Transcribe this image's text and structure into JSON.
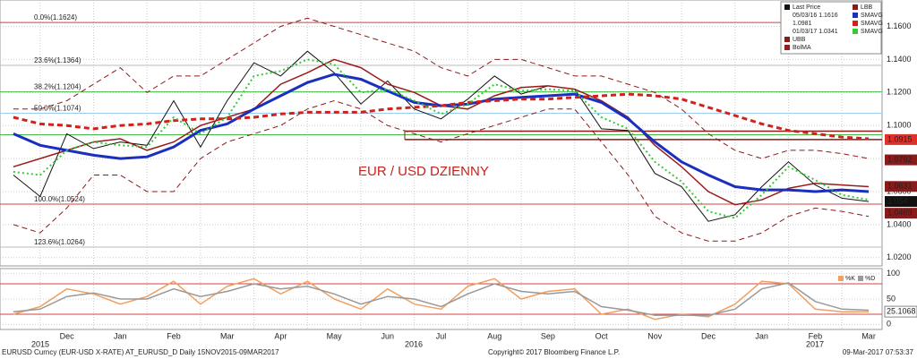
{
  "chart_data": {
    "type": "line",
    "annotation": "EUR / USD DZIENNY",
    "categories": [
      null,
      null,
      "Dec",
      null,
      "Jan",
      null,
      "Feb",
      null,
      "Mar",
      null,
      "Apr",
      null,
      "May",
      null,
      "Jun",
      null,
      "Jul",
      null,
      "Aug",
      null,
      "Sep",
      null,
      "Oct",
      null,
      "Nov",
      null,
      "Dec",
      null,
      "Jan",
      null,
      "Feb",
      null,
      "Mar"
    ],
    "year_labels": [
      "2015",
      "2016",
      "2017"
    ],
    "ylim": [
      1.015,
      1.176
    ],
    "yticks": [
      {
        "value": 1.16,
        "label": "1.1600"
      },
      {
        "value": 1.14,
        "label": "1.1400"
      },
      {
        "value": 1.12,
        "label": "1.1200"
      },
      {
        "value": 1.1,
        "label": "1.1000"
      },
      {
        "value": 1.08,
        "label": "1.0800"
      },
      {
        "value": 1.06,
        "label": "1.0600"
      },
      {
        "value": 1.04,
        "label": "1.0400"
      },
      {
        "value": 1.02,
        "label": "1.0200"
      }
    ],
    "grid": true,
    "series": [
      {
        "name": "Last Price",
        "color": "#111111",
        "style": "solid",
        "width": 1,
        "values": [
          1.07,
          1.057,
          1.095,
          1.086,
          1.09,
          1.088,
          1.115,
          1.087,
          1.115,
          1.138,
          1.13,
          1.145,
          1.132,
          1.113,
          1.127,
          1.11,
          1.104,
          1.116,
          1.13,
          1.119,
          1.124,
          1.122,
          1.098,
          1.097,
          1.071,
          1.063,
          1.042,
          1.046,
          1.063,
          1.078,
          1.064,
          1.056,
          1.054
        ]
      },
      {
        "name": "UBB",
        "color": "#8b1a1a",
        "style": "dashed",
        "width": 1,
        "values": [
          1.11,
          1.11,
          1.115,
          1.125,
          1.135,
          1.12,
          1.13,
          1.13,
          1.14,
          1.15,
          1.16,
          1.165,
          1.16,
          1.155,
          1.15,
          1.145,
          1.135,
          1.13,
          1.14,
          1.14,
          1.135,
          1.13,
          1.13,
          1.125,
          1.12,
          1.11,
          1.095,
          1.085,
          1.08,
          1.085,
          1.085,
          1.083,
          1.08
        ]
      },
      {
        "name": "BolMA",
        "color": "#9a1b1b",
        "style": "solid",
        "width": 1.5,
        "values": [
          1.075,
          1.08,
          1.085,
          1.09,
          1.092,
          1.085,
          1.09,
          1.1,
          1.105,
          1.11,
          1.125,
          1.132,
          1.14,
          1.135,
          1.125,
          1.12,
          1.112,
          1.11,
          1.118,
          1.123,
          1.124,
          1.122,
          1.115,
          1.105,
          1.088,
          1.075,
          1.06,
          1.052,
          1.055,
          1.062,
          1.065,
          1.064,
          1.063
        ]
      },
      {
        "name": "LBB",
        "color": "#8b1a1a",
        "style": "dashed",
        "width": 1,
        "values": [
          1.04,
          1.035,
          1.05,
          1.07,
          1.07,
          1.06,
          1.06,
          1.08,
          1.09,
          1.095,
          1.1,
          1.11,
          1.115,
          1.11,
          1.1,
          1.095,
          1.09,
          1.095,
          1.1,
          1.105,
          1.11,
          1.11,
          1.09,
          1.07,
          1.045,
          1.035,
          1.03,
          1.03,
          1.035,
          1.045,
          1.05,
          1.048,
          1.045
        ]
      },
      {
        "name": "SMAVG",
        "color": "#1a2fbf",
        "style": "solid",
        "width": 3,
        "values": [
          1.095,
          1.088,
          1.085,
          1.082,
          1.08,
          1.081,
          1.087,
          1.097,
          1.101,
          1.11,
          1.118,
          1.126,
          1.131,
          1.128,
          1.121,
          1.114,
          1.112,
          1.113,
          1.116,
          1.117,
          1.118,
          1.119,
          1.114,
          1.104,
          1.09,
          1.078,
          1.07,
          1.063,
          1.061,
          1.061,
          1.06,
          1.061,
          1.06
        ]
      },
      {
        "name": "SMAVG",
        "color": "#d0211b",
        "style": "dashed",
        "width": 3,
        "values": [
          1.105,
          1.101,
          1.1,
          1.098,
          1.1,
          1.101,
          1.103,
          1.104,
          1.104,
          1.105,
          1.107,
          1.108,
          1.108,
          1.108,
          1.11,
          1.111,
          1.112,
          1.114,
          1.115,
          1.116,
          1.116,
          1.117,
          1.118,
          1.119,
          1.118,
          1.116,
          1.111,
          1.106,
          1.101,
          1.097,
          1.095,
          1.093,
          1.092
        ]
      },
      {
        "name": "SMAVG",
        "color": "#33cc33",
        "style": "dotted",
        "width": 2,
        "values": [
          1.072,
          1.07,
          1.085,
          1.09,
          1.088,
          1.087,
          1.105,
          1.095,
          1.105,
          1.13,
          1.133,
          1.14,
          1.137,
          1.12,
          1.122,
          1.115,
          1.107,
          1.113,
          1.125,
          1.121,
          1.122,
          1.121,
          1.105,
          1.098,
          1.078,
          1.066,
          1.048,
          1.044,
          1.058,
          1.075,
          1.067,
          1.058,
          1.055
        ]
      }
    ],
    "legend_notes": [
      "05/03/16 1.1616",
      "1.0981",
      "01/03/17 1.0341"
    ],
    "fib_levels": [
      {
        "label": "0.0%(1.1624)",
        "value": 1.1624,
        "color": "#d04040"
      },
      {
        "label": "23.6%(1.1364)",
        "value": 1.1364,
        "color": "#bbbbbb"
      },
      {
        "label": "38.2%(1.1204)",
        "value": 1.1204,
        "color": "#44bb44"
      },
      {
        "label": "50.0%(1.1074)",
        "value": 1.1074,
        "color": "#99ccee"
      },
      {
        "value": 1.0944,
        "color": "#44bb44"
      },
      {
        "label": "100.0%(1.0524)",
        "value": 1.0524,
        "color": "#d04040"
      },
      {
        "label": "123.6%(1.0264)",
        "value": 1.0264,
        "color": "#bbbbbb"
      }
    ],
    "hlines": [
      1.0966,
      1.0915
    ],
    "value_tags": [
      {
        "value": 1.0915,
        "color": "#e0302a"
      },
      {
        "value": 1.0792,
        "color": "#8b1a1a"
      },
      {
        "value": 1.0631,
        "color": "#8b1a1a"
      },
      {
        "value": 1.054,
        "color": "#111111"
      },
      {
        "value": 1.0469,
        "color": "#8b1a1a"
      }
    ],
    "oscillator": {
      "ylim": [
        -10,
        110
      ],
      "yticks": [
        0,
        50,
        100
      ],
      "levels": [
        80,
        20
      ],
      "last_value": 25.1068,
      "series": [
        {
          "name": "%K",
          "color": "#f0a060",
          "values": [
            20,
            35,
            70,
            60,
            40,
            55,
            85,
            40,
            75,
            90,
            60,
            85,
            50,
            30,
            70,
            40,
            30,
            75,
            90,
            50,
            65,
            70,
            20,
            30,
            10,
            20,
            15,
            40,
            85,
            80,
            30,
            25,
            25
          ]
        },
        {
          "name": "%D",
          "color": "#999999",
          "values": [
            25,
            30,
            55,
            62,
            50,
            50,
            70,
            55,
            65,
            80,
            70,
            75,
            60,
            40,
            55,
            50,
            35,
            60,
            80,
            65,
            60,
            65,
            35,
            28,
            18,
            18,
            18,
            30,
            70,
            82,
            45,
            30,
            28
          ]
        }
      ]
    },
    "footer": {
      "left": "EURUSD Curncy (EUR-USD X-RATE) AT_EURUSD_D  Daily 15NOV2015-09MAR2017",
      "center": "Copyright© 2017 Bloomberg Finance L.P.",
      "right": "09-Mar-2017 07:53:37"
    }
  }
}
